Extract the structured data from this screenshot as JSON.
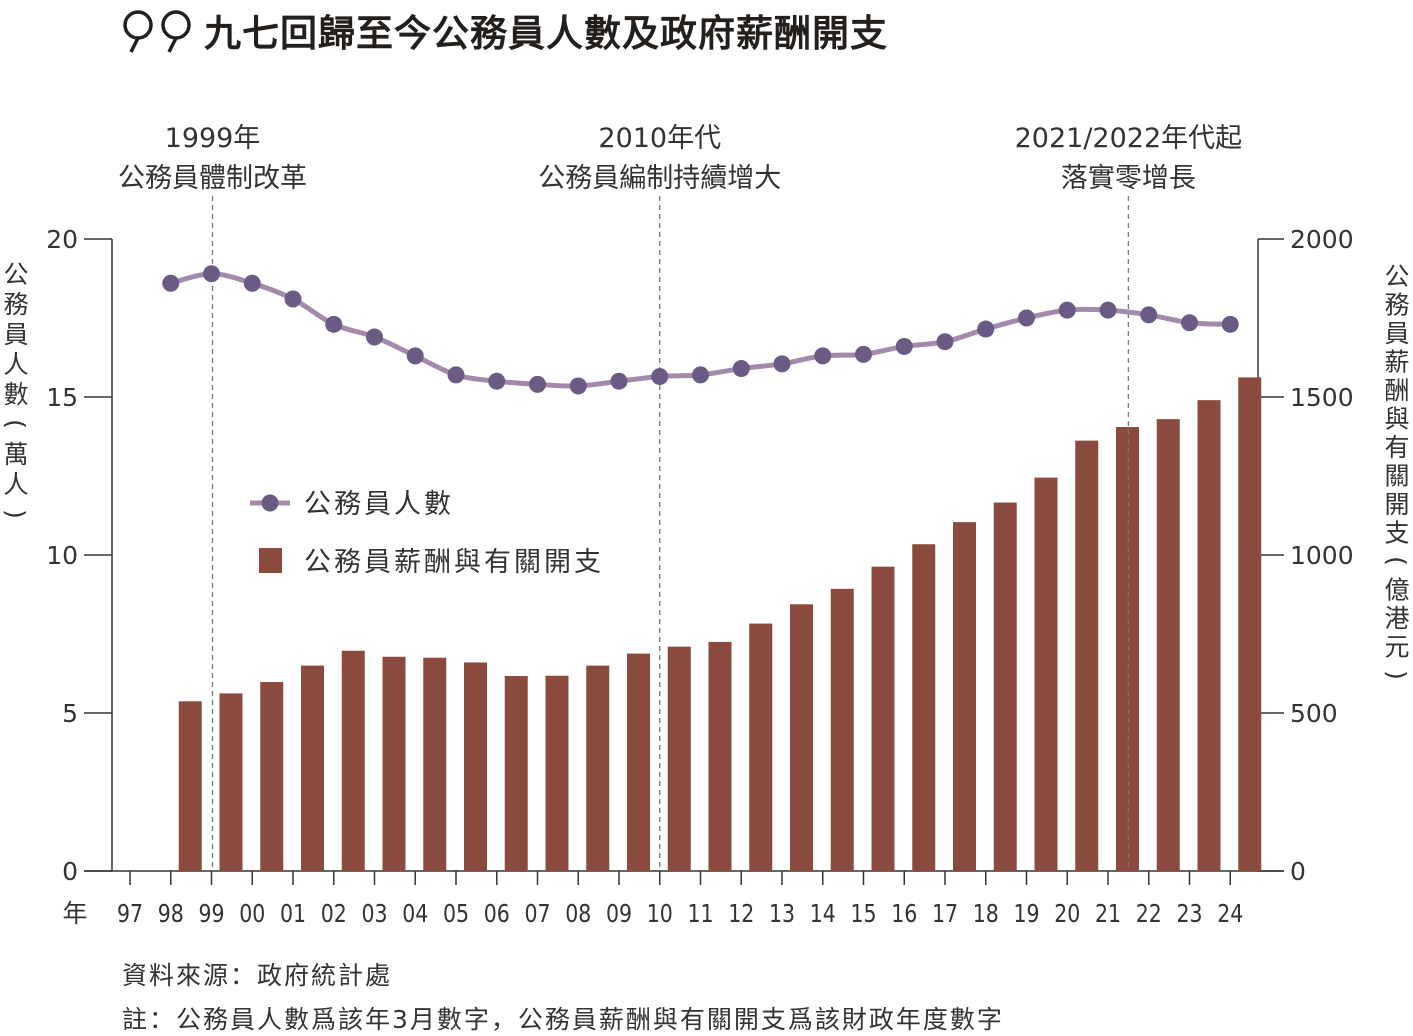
{
  "title": "九七回歸至今公務員人數及政府薪酬開支",
  "colors": {
    "bar": "#8b4a3e",
    "line": "#a48aaa",
    "marker": "#6b5b84",
    "axis": "#333333",
    "vline": "#777777"
  },
  "annotations": [
    {
      "year": "99",
      "lines": [
        "1999年",
        "公務員體制改革"
      ]
    },
    {
      "year": "10",
      "lines": [
        "2010年代",
        "公務員編制持續增大"
      ]
    },
    {
      "year": "21.5",
      "lines": [
        "2021/2022年代起",
        "落實零增長"
      ]
    }
  ],
  "chart_data": {
    "type": "bar",
    "x_title": "年",
    "categories": [
      "97",
      "98",
      "99",
      "00",
      "01",
      "02",
      "03",
      "04",
      "05",
      "06",
      "07",
      "08",
      "09",
      "10",
      "11",
      "12",
      "13",
      "14",
      "15",
      "16",
      "17",
      "18",
      "19",
      "20",
      "21",
      "22",
      "23",
      "24"
    ],
    "series": [
      {
        "name": "公務員薪酬與有關開支",
        "type": "bar",
        "axis": "right",
        "values": [
          null,
          537,
          562,
          598,
          650,
          697,
          678,
          675,
          660,
          617,
          618,
          650,
          688,
          710,
          725,
          783,
          844,
          893,
          963,
          1034,
          1104,
          1166,
          1245,
          1362,
          1405,
          1430,
          1490,
          1562
        ]
      },
      {
        "name": "公務員人數",
        "type": "line",
        "axis": "left",
        "values": [
          null,
          18.6,
          18.9,
          18.6,
          18.1,
          17.3,
          16.9,
          16.3,
          15.7,
          15.5,
          15.4,
          15.35,
          15.5,
          15.65,
          15.7,
          15.9,
          16.05,
          16.3,
          16.35,
          16.6,
          16.75,
          17.15,
          17.5,
          17.75,
          17.75,
          17.6,
          17.35,
          17.3
        ]
      }
    ],
    "y_left": {
      "title": "公務員人數(萬人)",
      "ticks": [
        0,
        5,
        10,
        15,
        20
      ],
      "ylim": [
        0,
        20
      ]
    },
    "y_right": {
      "title": "公務員薪酬與有關開支(億港元)",
      "ticks": [
        0,
        500,
        1000,
        1500,
        2000
      ],
      "ylim": [
        0,
        2000
      ]
    },
    "legend": [
      "公務員人數",
      "公務員薪酬與有關開支"
    ],
    "legend_position": "center-left"
  },
  "source": "資料來源：政府統計處",
  "footnote": "註：公務員人數爲該年3月數字，公務員薪酬與有關開支爲該財政年度數字"
}
